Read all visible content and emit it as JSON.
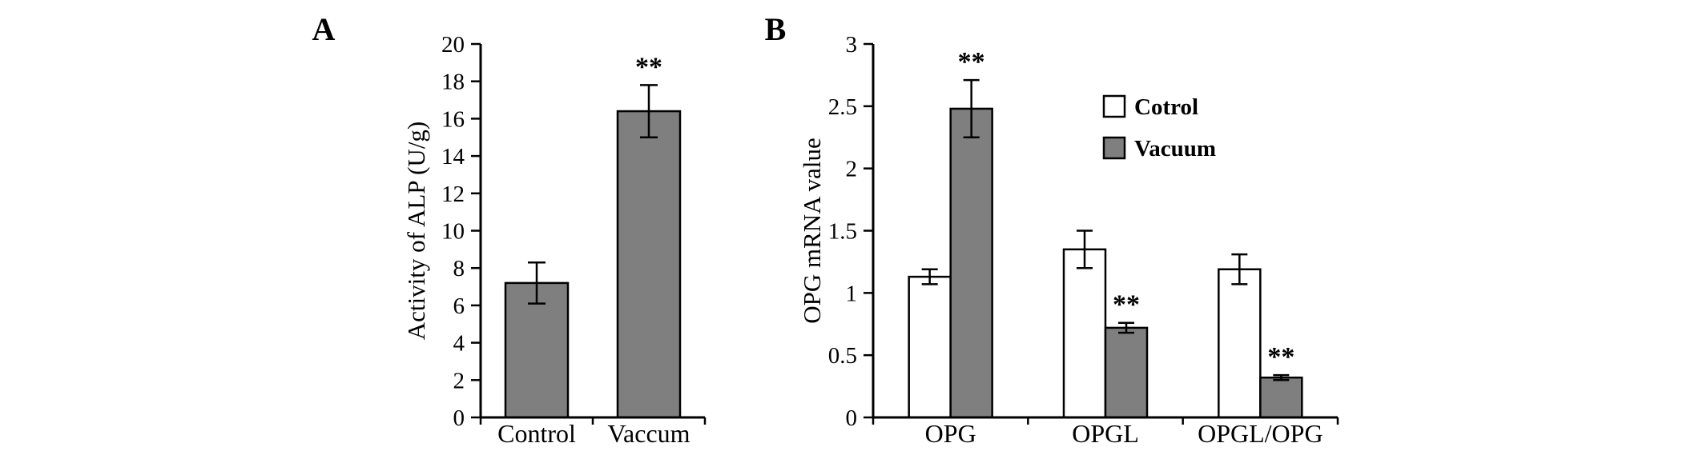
{
  "figure": {
    "background": "#ffffff",
    "axis_color": "#000000",
    "panels": [
      {
        "label": "A"
      },
      {
        "label": "B"
      }
    ]
  },
  "chart_data": [
    {
      "type": "bar",
      "panel_label": "A",
      "categories": [
        "Control",
        "Vaccum"
      ],
      "values": [
        7.2,
        16.4
      ],
      "errors": [
        1.1,
        1.4
      ],
      "significance": [
        "",
        "**"
      ],
      "bar_color": "#7f7f7f",
      "ylabel": "Activity of ALP (U/g)",
      "ylim": [
        0,
        20
      ],
      "yticks": [
        0,
        2,
        4,
        6,
        8,
        10,
        12,
        14,
        16,
        18,
        20
      ],
      "ytick_labels": [
        "0",
        "2",
        "4",
        "6",
        "8",
        "10",
        "12",
        "14",
        "16",
        "18",
        "20"
      ],
      "grid": false,
      "legend": null
    },
    {
      "type": "bar",
      "panel_label": "B",
      "categories": [
        "OPG",
        "OPGL",
        "OPGL/OPG"
      ],
      "series": [
        {
          "name": "Cotrol",
          "color": "#ffffff",
          "values": [
            1.13,
            1.35,
            1.19
          ],
          "errors": [
            0.06,
            0.15,
            0.12
          ],
          "significance": [
            "",
            "",
            ""
          ]
        },
        {
          "name": "Vacuum",
          "color": "#7f7f7f",
          "values": [
            2.48,
            0.72,
            0.32
          ],
          "errors": [
            0.23,
            0.04,
            0.02
          ],
          "significance": [
            "**",
            "**",
            "**"
          ]
        }
      ],
      "ylabel": "OPG mRNA value",
      "ylim": [
        0,
        3
      ],
      "yticks": [
        0,
        0.5,
        1,
        1.5,
        2,
        2.5,
        3
      ],
      "ytick_labels": [
        "0",
        "0.5",
        "1",
        "1.5",
        "2",
        "2.5",
        "3"
      ],
      "grid": false,
      "legend": {
        "entries": [
          "Cotrol",
          "Vacuum"
        ],
        "position": "upper-center"
      }
    }
  ]
}
